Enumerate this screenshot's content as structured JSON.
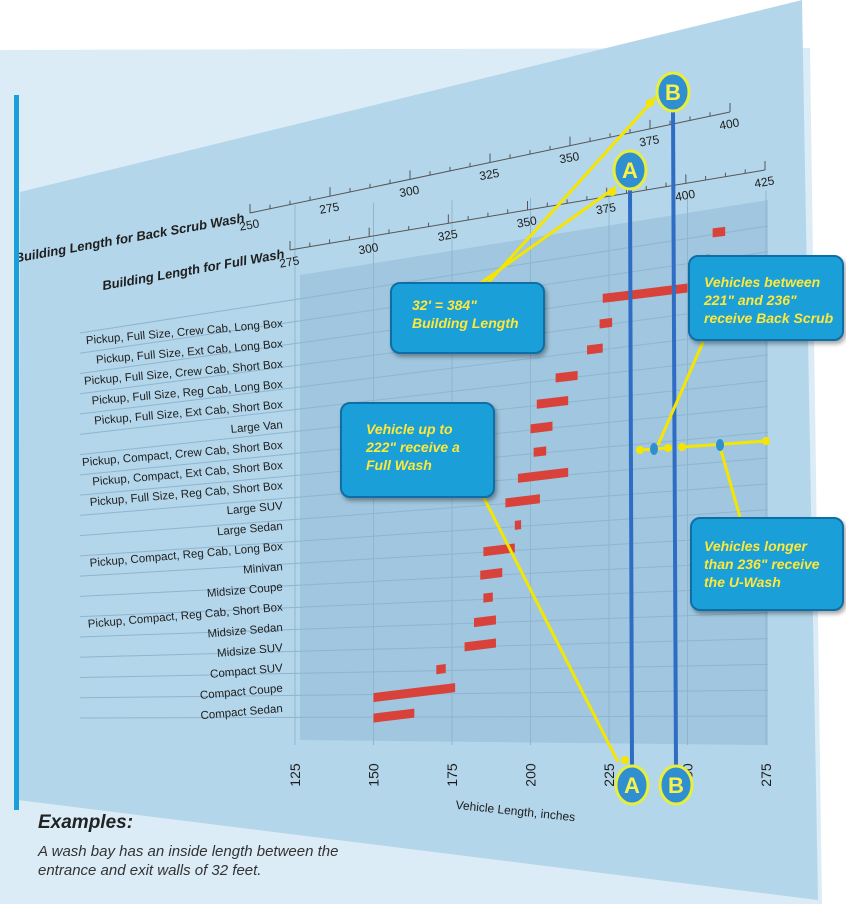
{
  "chart_data": {
    "type": "bar",
    "xlabel": "Vehicle Length, inches",
    "xlim": [
      125,
      275
    ],
    "x_ticks": [
      "125",
      "150",
      "175",
      "200",
      "225",
      "250",
      "275"
    ],
    "full_wash_scale": {
      "label": "Building Length for Full Wash",
      "ticks": [
        "275",
        "300",
        "325",
        "350",
        "375",
        "400",
        "425"
      ]
    },
    "back_scrub_scale": {
      "label": "Building Length for Back Scrub Wash",
      "ticks": [
        "250",
        "275",
        "300",
        "325",
        "350",
        "375",
        "400"
      ]
    },
    "categories": [
      "Pickup, Full Size, Crew Cab, Long Box",
      "Pickup, Full Size, Ext Cab, Long Box",
      "Pickup, Full Size, Crew Cab, Short Box",
      "Pickup, Full Size, Reg Cab, Long Box",
      "Pickup, Full Size, Ext Cab, Short Box",
      "Large Van",
      "Pickup, Compact, Crew Cab, Short Box",
      "Pickup, Compact, Ext Cab, Short Box",
      "Pickup, Full Size, Reg Cab, Short Box",
      "Large SUV",
      "Large Sedan",
      "Pickup, Compact, Reg Cab, Long Box",
      "Minivan",
      "Midsize Coupe",
      "Pickup, Compact, Reg Cab, Short Box",
      "Midsize Sedan",
      "Midsize SUV",
      "Compact SUV",
      "Compact Coupe",
      "Compact Sedan"
    ],
    "ranges": [
      [
        258,
        262
      ],
      [
        255,
        257
      ],
      [
        223,
        250
      ],
      [
        222,
        226
      ],
      [
        218,
        223
      ],
      [
        208,
        215
      ],
      [
        202,
        212
      ],
      [
        200,
        207
      ],
      [
        201,
        205
      ],
      [
        196,
        212
      ],
      [
        192,
        203
      ],
      [
        195,
        197
      ],
      [
        185,
        195
      ],
      [
        184,
        191
      ],
      [
        185,
        188
      ],
      [
        182,
        189
      ],
      [
        179,
        189
      ],
      [
        170,
        173
      ],
      [
        150,
        176
      ],
      [
        150,
        163
      ]
    ],
    "bar_color": "#d9423a",
    "markers": [
      {
        "label": "A",
        "x": 230
      },
      {
        "label": "B",
        "x": 245
      }
    ]
  },
  "callouts": {
    "building": "32' = 384\" Building Length",
    "back_scrub": "Vehicles between 221\" and 236\" receive Back Scrub",
    "full_wash": "Vehicle up to 222\" receive a Full Wash",
    "u_wash": "Vehicles longer than 236\" receive the U-Wash"
  },
  "examples": {
    "heading": "Examples:",
    "text": "A wash bay has an inside length between the entrance and exit walls of 32 feet."
  },
  "colors": {
    "panel": "#b9d9ec",
    "grid_panel": "#a4c9e1",
    "callout": "#1a9fd8",
    "callout_text": "#ffe83a",
    "marker_line": "#2f6cc4",
    "arrow": "#f5e500"
  }
}
